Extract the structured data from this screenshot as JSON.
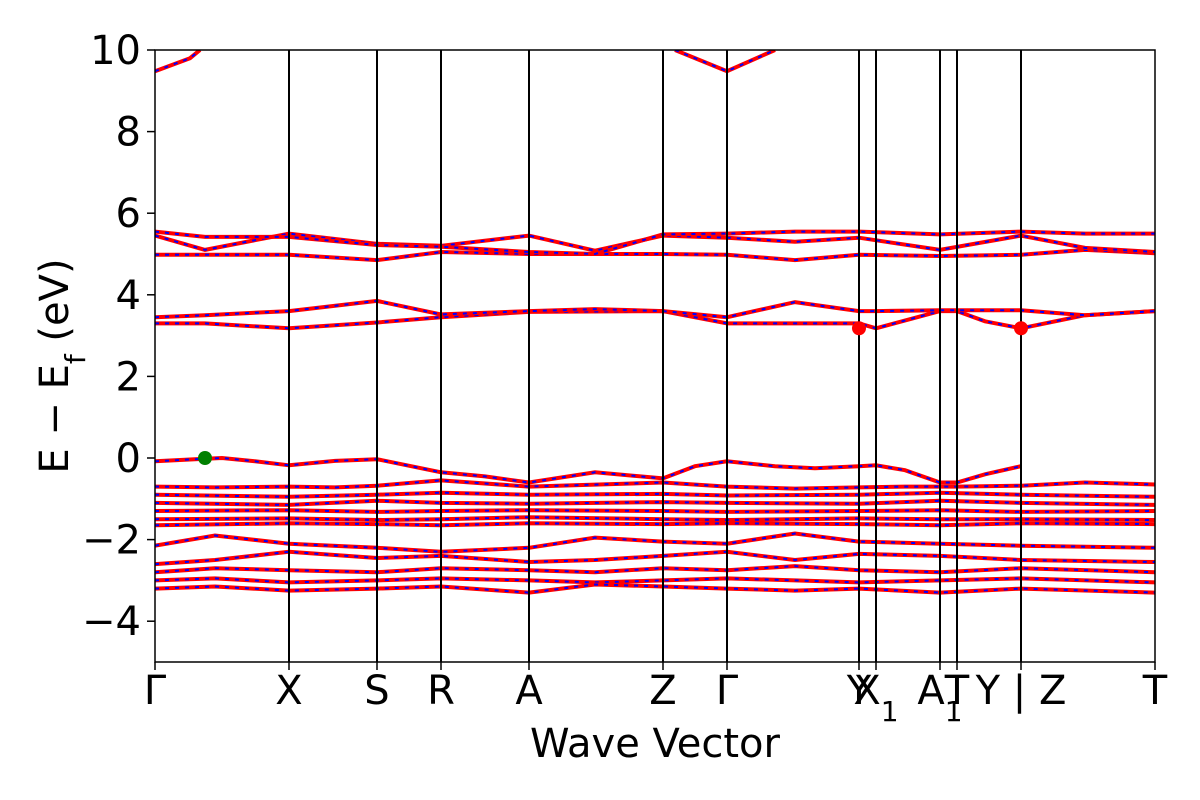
{
  "chart_data": {
    "type": "line",
    "title": "",
    "xlabel": "Wave Vector",
    "ylabel": "E − E",
    "ylabel_subscript": "f",
    "ylabel_unit": " (eV)",
    "ylim": [
      -5,
      10
    ],
    "yticks": [
      -4,
      -2,
      0,
      2,
      4,
      6,
      8,
      10
    ],
    "ytick_labels": [
      "−4",
      "−2",
      "0",
      "2",
      "4",
      "6",
      "8",
      "10"
    ],
    "xlim": [
      0,
      1
    ],
    "kpoints": [
      {
        "label": "Γ",
        "sub": "",
        "x": 0.0
      },
      {
        "label": "X",
        "sub": "",
        "x": 0.134
      },
      {
        "label": "S",
        "sub": "",
        "x": 0.222
      },
      {
        "label": "R",
        "sub": "",
        "x": 0.286
      },
      {
        "label": "A",
        "sub": "",
        "x": 0.374
      },
      {
        "label": "Z",
        "sub": "",
        "x": 0.508
      },
      {
        "label": "Γ",
        "sub": "",
        "x": 0.572
      },
      {
        "label": "Y",
        "sub": "",
        "x": 0.704
      },
      {
        "label": "X",
        "sub": "1",
        "x": 0.721
      },
      {
        "label": "A",
        "sub": "1",
        "x": 0.785
      },
      {
        "label": "T",
        "sub": "",
        "x": 0.802
      },
      {
        "label": "Y | Z",
        "sub": "",
        "x": 0.866
      },
      {
        "label": "T",
        "sub": "",
        "x": 1.0
      }
    ],
    "line_colors": {
      "primary": "#ff0000",
      "overlay": "#0000ff",
      "kline": "#000000"
    },
    "series": [
      {
        "x": [
          0,
          0.04,
          0.067,
          0.1,
          0.134,
          0.18,
          0.222,
          0.286,
          0.33,
          0.374,
          0.44,
          0.508,
          0.54,
          0.572,
          0.62,
          0.66,
          0.704,
          0.721,
          0.75,
          0.785,
          0.802,
          0.83,
          0.866,
          0.93,
          1.0
        ],
        "y": [
          -0.08,
          -0.03,
          0.0,
          -0.08,
          -0.18,
          -0.07,
          -0.03,
          -0.35,
          -0.45,
          -0.6,
          -0.35,
          -0.5,
          -0.2,
          -0.08,
          -0.2,
          -0.25,
          -0.2,
          -0.18,
          -0.3,
          -0.6,
          -0.6,
          -0.4,
          -0.2,
          null,
          null
        ]
      },
      {
        "x": [
          0,
          0.06,
          0.134,
          0.18,
          0.222,
          0.26,
          0.286,
          0.374,
          0.508,
          0.572,
          0.64,
          0.704,
          0.75,
          0.802,
          0.866,
          0.93,
          1.0
        ],
        "y": [
          -0.7,
          -0.72,
          -0.7,
          -0.72,
          -0.68,
          -0.6,
          -0.55,
          -0.7,
          -0.6,
          -0.7,
          -0.75,
          -0.72,
          -0.7,
          -0.7,
          -0.68,
          -0.6,
          -0.65
        ]
      },
      {
        "x": [
          0,
          0.134,
          0.222,
          0.286,
          0.374,
          0.508,
          0.572,
          0.704,
          0.785,
          0.866,
          1.0
        ],
        "y": [
          -0.9,
          -0.95,
          -0.9,
          -0.85,
          -0.9,
          -0.88,
          -0.92,
          -0.9,
          -0.85,
          -0.9,
          -0.95
        ]
      },
      {
        "x": [
          0,
          0.134,
          0.222,
          0.286,
          0.374,
          0.508,
          0.572,
          0.704,
          0.785,
          0.866,
          1.0
        ],
        "y": [
          -1.1,
          -1.15,
          -1.05,
          -1.1,
          -1.12,
          -1.08,
          -1.1,
          -1.12,
          -1.05,
          -1.1,
          -1.15
        ]
      },
      {
        "x": [
          0,
          0.134,
          0.222,
          0.286,
          0.374,
          0.508,
          0.572,
          0.704,
          0.785,
          0.866,
          1.0
        ],
        "y": [
          -1.3,
          -1.28,
          -1.32,
          -1.3,
          -1.28,
          -1.3,
          -1.32,
          -1.3,
          -1.28,
          -1.32,
          -1.3
        ]
      },
      {
        "x": [
          0,
          0.134,
          0.222,
          0.286,
          0.374,
          0.508,
          0.572,
          0.704,
          0.785,
          0.866,
          1.0
        ],
        "y": [
          -1.5,
          -1.48,
          -1.52,
          -1.5,
          -1.45,
          -1.5,
          -1.52,
          -1.48,
          -1.5,
          -1.5,
          -1.52
        ]
      },
      {
        "x": [
          0,
          0.134,
          0.222,
          0.286,
          0.374,
          0.508,
          0.572,
          0.704,
          0.785,
          0.866,
          1.0
        ],
        "y": [
          -1.65,
          -1.6,
          -1.62,
          -1.65,
          -1.6,
          -1.62,
          -1.6,
          -1.62,
          -1.65,
          -1.6,
          -1.62
        ]
      },
      {
        "x": [
          0,
          0.06,
          0.134,
          0.222,
          0.286,
          0.374,
          0.44,
          0.508,
          0.572,
          0.64,
          0.704,
          0.785,
          0.866,
          1.0
        ],
        "y": [
          -2.15,
          -1.9,
          -2.1,
          -2.2,
          -2.3,
          -2.2,
          -1.95,
          -2.05,
          -2.1,
          -1.85,
          -2.05,
          -2.1,
          -2.15,
          -2.2
        ]
      },
      {
        "x": [
          0,
          0.06,
          0.134,
          0.222,
          0.286,
          0.374,
          0.44,
          0.508,
          0.572,
          0.64,
          0.704,
          0.785,
          0.866,
          1.0
        ],
        "y": [
          -2.6,
          -2.5,
          -2.3,
          -2.45,
          -2.4,
          -2.55,
          -2.5,
          -2.4,
          -2.3,
          -2.5,
          -2.35,
          -2.4,
          -2.5,
          -2.55
        ]
      },
      {
        "x": [
          0,
          0.06,
          0.134,
          0.222,
          0.286,
          0.374,
          0.44,
          0.508,
          0.572,
          0.64,
          0.704,
          0.785,
          0.866,
          1.0
        ],
        "y": [
          -2.8,
          -2.7,
          -2.75,
          -2.8,
          -2.7,
          -2.75,
          -2.8,
          -2.7,
          -2.75,
          -2.65,
          -2.75,
          -2.8,
          -2.7,
          -2.8
        ]
      },
      {
        "x": [
          0,
          0.06,
          0.134,
          0.222,
          0.286,
          0.374,
          0.44,
          0.508,
          0.572,
          0.64,
          0.704,
          0.785,
          0.866,
          1.0
        ],
        "y": [
          -3.0,
          -2.95,
          -3.05,
          -3.0,
          -2.95,
          -3.0,
          -3.05,
          -3.0,
          -2.95,
          -3.0,
          -3.05,
          -3.0,
          -2.95,
          -3.05
        ]
      },
      {
        "x": [
          0,
          0.06,
          0.134,
          0.222,
          0.286,
          0.374,
          0.44,
          0.508,
          0.572,
          0.64,
          0.704,
          0.785,
          0.866,
          1.0
        ],
        "y": [
          -3.2,
          -3.15,
          -3.25,
          -3.2,
          -3.15,
          -3.3,
          -3.1,
          -3.15,
          -3.2,
          -3.25,
          -3.2,
          -3.3,
          -3.2,
          -3.3
        ]
      },
      {
        "x": [
          0,
          0.05,
          0.134,
          0.222,
          0.286,
          0.374,
          0.508,
          0.572,
          0.64,
          0.704,
          0.721,
          0.785,
          0.802,
          0.83,
          0.866,
          0.93,
          1.0
        ],
        "y": [
          3.3,
          3.3,
          3.18,
          3.32,
          3.45,
          3.58,
          3.6,
          3.3,
          3.3,
          3.3,
          3.18,
          3.6,
          3.6,
          3.35,
          3.18,
          3.5,
          3.6
        ]
      },
      {
        "x": [
          0,
          0.05,
          0.134,
          0.222,
          0.286,
          0.374,
          0.44,
          0.508,
          0.572,
          0.64,
          0.704,
          0.721,
          0.785,
          0.866,
          0.93,
          1.0
        ],
        "y": [
          3.45,
          3.5,
          3.6,
          3.85,
          3.52,
          3.6,
          3.65,
          3.6,
          3.45,
          3.82,
          3.6,
          3.6,
          3.62,
          3.62,
          3.5,
          3.6
        ]
      },
      {
        "x": [
          0,
          0.05,
          0.134,
          0.222,
          0.286,
          0.374,
          0.44,
          0.508,
          0.572,
          0.64,
          0.704,
          0.785,
          0.866,
          0.93,
          1.0
        ],
        "y": [
          4.98,
          4.98,
          4.98,
          4.85,
          5.05,
          5.0,
          5.0,
          5.0,
          4.98,
          4.85,
          4.98,
          4.95,
          4.98,
          5.1,
          5.02
        ]
      },
      {
        "x": [
          0,
          0.05,
          0.134,
          0.222,
          0.286,
          0.374,
          0.44,
          0.508,
          0.572,
          0.64,
          0.704,
          0.785,
          0.866,
          0.93,
          1.0
        ],
        "y": [
          5.45,
          5.1,
          5.5,
          5.25,
          5.2,
          5.45,
          5.08,
          5.45,
          5.4,
          5.3,
          5.4,
          5.1,
          5.45,
          5.15,
          5.05
        ]
      },
      {
        "x": [
          0,
          0.05,
          0.134,
          0.222,
          0.286,
          0.374,
          0.44,
          0.508,
          0.572,
          0.64,
          0.704,
          0.785,
          0.866,
          0.93,
          1.0
        ],
        "y": [
          5.55,
          5.42,
          5.42,
          5.22,
          5.18,
          5.05,
          5.0,
          5.48,
          5.5,
          5.55,
          5.55,
          5.48,
          5.55,
          5.5,
          5.5
        ]
      },
      {
        "x": [
          0,
          0.035,
          0.045
        ],
        "y": [
          9.48,
          9.8,
          10.0
        ]
      },
      {
        "x": [
          0.52,
          0.572,
          0.62
        ],
        "y": [
          10.0,
          9.48,
          10.0
        ]
      }
    ],
    "markers": [
      {
        "x": 0.05,
        "y": 0.0,
        "color": "#008000"
      },
      {
        "x": 0.704,
        "y": 3.18,
        "color": "#ff0000"
      },
      {
        "x": 0.866,
        "y": 3.18,
        "color": "#ff0000"
      }
    ],
    "grid": false,
    "legend": "none"
  }
}
